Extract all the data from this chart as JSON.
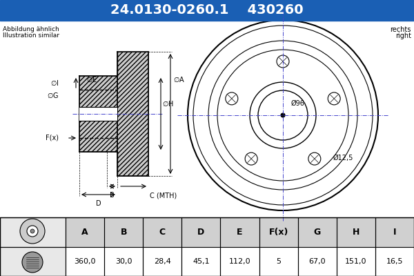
{
  "part_number": "24.0130-0260.1",
  "ref_number": "430260",
  "header_bg": "#1a5fb4",
  "header_text_color": "#ffffff",
  "bg_color": "#ffffff",
  "note_line1": "Abbildung ähnlich",
  "note_line2": "Illustration similar",
  "side_text_line1": "rechts",
  "side_text_line2": "right",
  "dim_label_96": "Ø96",
  "dim_label_12_5": "Ø12,5",
  "dim_B": "B",
  "dim_C": "C (MTH)",
  "dim_D": "D",
  "table_headers": [
    "A",
    "B",
    "C",
    "D",
    "E",
    "F(x)",
    "G",
    "H",
    "I"
  ],
  "table_values": [
    "360,0",
    "30,0",
    "28,4",
    "45,1",
    "112,0",
    "5",
    "67,0",
    "151,0",
    "16,5"
  ],
  "table_header_bg": "#d0d0d0",
  "table_row_bg": "#ffffff",
  "grid_color": "#000000",
  "line_color": "#000000",
  "hatch_color": "#555555",
  "dim_line_color": "#000000"
}
